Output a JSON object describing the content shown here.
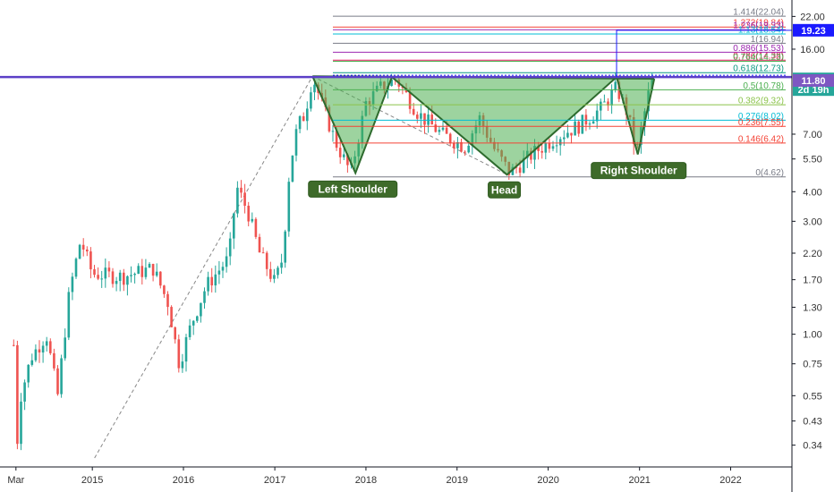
{
  "chart_data": {
    "type": "candlestick",
    "y_scale": "log",
    "ylim": [
      0.3,
      24.5
    ],
    "xlim": [
      "2014-02-01",
      "2022-05-01"
    ],
    "x_tick_labels": [
      {
        "label": "Mar",
        "date": "2014-03-01"
      },
      {
        "label": "2015",
        "date": "2015-01-01"
      },
      {
        "label": "2016",
        "date": "2016-01-01"
      },
      {
        "label": "2017",
        "date": "2017-01-01"
      },
      {
        "label": "2018",
        "date": "2018-01-01"
      },
      {
        "label": "2019",
        "date": "2019-01-01"
      },
      {
        "label": "2020",
        "date": "2020-01-01"
      },
      {
        "label": "2021",
        "date": "2021-01-01"
      },
      {
        "label": "2022",
        "date": "2022-01-01"
      }
    ],
    "y_tick_labels": [
      "22.00",
      "16.00",
      "11.80",
      "7.00",
      "5.50",
      "4.00",
      "3.00",
      "2.20",
      "1.70",
      "1.30",
      "1.00",
      "0.75",
      "0.55",
      "0.43",
      "0.34"
    ],
    "price_path": [
      {
        "date": "2014-02-20",
        "price": 0.9
      },
      {
        "date": "2014-03-05",
        "price": 0.34
      },
      {
        "date": "2014-03-20",
        "price": 0.55
      },
      {
        "date": "2014-05-01",
        "price": 0.8
      },
      {
        "date": "2014-07-01",
        "price": 1.0
      },
      {
        "date": "2014-08-15",
        "price": 0.55
      },
      {
        "date": "2014-10-01",
        "price": 1.5
      },
      {
        "date": "2014-11-15",
        "price": 2.5
      },
      {
        "date": "2015-01-01",
        "price": 1.8
      },
      {
        "date": "2015-05-01",
        "price": 1.75
      },
      {
        "date": "2015-09-01",
        "price": 1.9
      },
      {
        "date": "2015-11-01",
        "price": 1.35
      },
      {
        "date": "2015-12-15",
        "price": 0.75
      },
      {
        "date": "2016-02-01",
        "price": 1.1
      },
      {
        "date": "2016-04-01",
        "price": 1.6
      },
      {
        "date": "2016-07-01",
        "price": 2.1
      },
      {
        "date": "2016-08-01",
        "price": 4.2
      },
      {
        "date": "2016-09-15",
        "price": 3.3
      },
      {
        "date": "2016-11-01",
        "price": 2.2
      },
      {
        "date": "2017-01-01",
        "price": 1.65
      },
      {
        "date": "2017-02-01",
        "price": 2.1
      },
      {
        "date": "2017-03-01",
        "price": 5.0
      },
      {
        "date": "2017-04-01",
        "price": 7.5
      },
      {
        "date": "2017-05-01",
        "price": 8.5
      },
      {
        "date": "2017-06-01",
        "price": 12.3
      },
      {
        "date": "2017-07-15",
        "price": 9.0
      },
      {
        "date": "2017-09-01",
        "price": 6.5
      },
      {
        "date": "2017-11-01",
        "price": 4.8
      },
      {
        "date": "2018-01-01",
        "price": 9.5
      },
      {
        "date": "2018-03-01",
        "price": 11.0
      },
      {
        "date": "2018-05-01",
        "price": 12.0
      },
      {
        "date": "2018-08-01",
        "price": 8.5
      },
      {
        "date": "2018-11-01",
        "price": 7.0
      },
      {
        "date": "2019-02-01",
        "price": 6.2
      },
      {
        "date": "2019-04-01",
        "price": 8.2
      },
      {
        "date": "2019-06-01",
        "price": 6.0
      },
      {
        "date": "2019-08-01",
        "price": 4.8
      },
      {
        "date": "2019-11-01",
        "price": 5.8
      },
      {
        "date": "2020-02-01",
        "price": 6.8
      },
      {
        "date": "2020-05-01",
        "price": 7.6
      },
      {
        "date": "2020-08-01",
        "price": 9.0
      },
      {
        "date": "2020-10-01",
        "price": 11.0
      },
      {
        "date": "2020-11-15",
        "price": 8.5
      },
      {
        "date": "2020-12-20",
        "price": 5.8
      },
      {
        "date": "2021-01-15",
        "price": 8.0
      },
      {
        "date": "2021-02-15",
        "price": 11.5
      },
      {
        "date": "2021-03-01",
        "price": 11.8
      }
    ],
    "fib_levels": [
      {
        "label": "1.414(22.04)",
        "value": 22.04,
        "color": "#787b86"
      },
      {
        "label": "1.272(19.84)",
        "value": 19.84,
        "color": "#f44336"
      },
      {
        "label": "1.236(19.33)",
        "value": 19.33,
        "color": "#9c27b0"
      },
      {
        "label": "1.13(18.54)",
        "value": 18.54,
        "color": "#00bcd4"
      },
      {
        "label": "1(16.94)",
        "value": 16.94,
        "color": "#787b86"
      },
      {
        "label": "0.886(15.53)",
        "value": 15.53,
        "color": "#9c27b0"
      },
      {
        "label": "0.786(14.38)",
        "value": 14.38,
        "color": "#e91e63"
      },
      {
        "label": "0.764(14.23)",
        "value": 14.23,
        "color": "#4caf50"
      },
      {
        "label": "0.618(12.73)",
        "value": 12.73,
        "color": "#089981"
      },
      {
        "label": "0.5(10.78)",
        "value": 10.78,
        "color": "#4caf50"
      },
      {
        "label": "0.382(9.32)",
        "value": 9.32,
        "color": "#8bc34a"
      },
      {
        "label": "0.276(8.02)",
        "value": 8.02,
        "color": "#00bcd4"
      },
      {
        "label": "0.236(7.55)",
        "value": 7.55,
        "color": "#f44336"
      },
      {
        "label": "0.146(6.42)",
        "value": 6.42,
        "color": "#f44336"
      },
      {
        "label": "0(4.62)",
        "value": 4.62,
        "color": "#787b86"
      }
    ],
    "head_and_shoulders": {
      "points": [
        {
          "date": "2017-06-01",
          "price": 12.3
        },
        {
          "date": "2017-11-20",
          "price": 4.8
        },
        {
          "date": "2018-04-15",
          "price": 12.2
        },
        {
          "date": "2019-07-20",
          "price": 4.72
        },
        {
          "date": "2020-10-01",
          "price": 12.2
        },
        {
          "date": "2020-12-25",
          "price": 5.75
        },
        {
          "date": "2021-03-01",
          "price": 12.0
        }
      ],
      "labels": [
        "Left Shoulder",
        "Head",
        "Right Shoulder"
      ]
    },
    "resistance_price": 12.2,
    "trendline_dashed": [
      {
        "date": "2015-01-10",
        "price": 0.3
      },
      {
        "date": "2017-06-01",
        "price": 12.3
      }
    ],
    "dashed_diag": [
      {
        "date": "2017-06-01",
        "price": 12.3
      },
      {
        "date": "2019-07-20",
        "price": 4.72
      }
    ],
    "target_line": {
      "date": "2020-10-01",
      "from": 12.2,
      "to": 19.23
    },
    "price_tags": [
      {
        "label": "19.23",
        "value": 19.23,
        "color": "#1a1aff"
      },
      {
        "label": "11.88",
        "sublabel": "2d 19h",
        "value": 11.88,
        "color": "#26a69a"
      },
      {
        "label": "11.80",
        "value": 11.8,
        "color": "#7e57c2"
      }
    ]
  }
}
